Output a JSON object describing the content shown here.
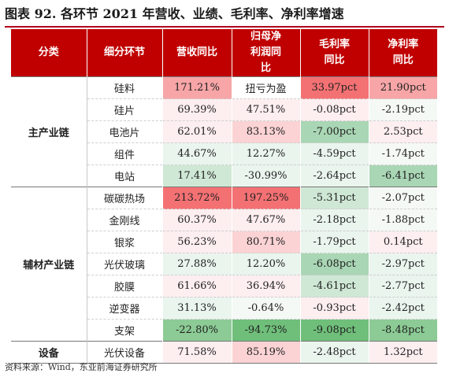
{
  "title": "图表 92. 各环节 2021 年营收、业绩、毛利率、净利率增速",
  "headers": {
    "group": "分类",
    "segment": "细分环节",
    "revenue": "营收同比",
    "profit": "归母净利润同比",
    "gross_margin": "毛利率同比",
    "net_margin": "净利率同比"
  },
  "colors": {
    "header_bg": "#c00000",
    "strong_red": "#f47173",
    "mid_red": "#f7a5a7",
    "light_red": "#fbd3d4",
    "faint_red": "#fdeef0",
    "faint_green": "#eaf5ee",
    "light_green": "#cfe8d5",
    "mid_green": "#a9d6b4",
    "strong_green": "#6fbf7a"
  },
  "groups": [
    {
      "name": "主产业链",
      "rows": [
        {
          "segment": "硅料",
          "revenue": "171.21%",
          "profit": "扭亏为盈",
          "gross_margin": "33.97pct",
          "net_margin": "21.90pct",
          "c": [
            "#f7a5a7",
            "#ffffff",
            "#f47173",
            "#f7a5a7"
          ]
        },
        {
          "segment": "硅片",
          "revenue": "69.39%",
          "profit": "47.51%",
          "gross_margin": "-0.08pct",
          "net_margin": "-2.19pct",
          "c": [
            "#fdeef0",
            "#fdeef0",
            "#fdeef0",
            "#f5f9f6"
          ]
        },
        {
          "segment": "电池片",
          "revenue": "62.01%",
          "profit": "83.13%",
          "gross_margin": "-7.00pct",
          "net_margin": "2.53pct",
          "c": [
            "#fdeef0",
            "#fbd3d4",
            "#a9d6b4",
            "#fdeef0"
          ]
        },
        {
          "segment": "组件",
          "revenue": "44.67%",
          "profit": "12.27%",
          "gross_margin": "-4.59pct",
          "net_margin": "-1.74pct",
          "c": [
            "#eaf5ee",
            "#eaf5ee",
            "#eaf5ee",
            "#f5f9f6"
          ]
        },
        {
          "segment": "电站",
          "revenue": "17.41%",
          "profit": "-30.99%",
          "gross_margin": "-2.64pct",
          "net_margin": "-6.41pct",
          "c": [
            "#cfe8d5",
            "#eaf5ee",
            "#eaf5ee",
            "#a9d6b4"
          ]
        }
      ]
    },
    {
      "name": "辅材产业链",
      "rows": [
        {
          "segment": "碳碳热场",
          "revenue": "213.72%",
          "profit": "197.25%",
          "gross_margin": "-5.31pct",
          "net_margin": "-2.07pct",
          "c": [
            "#f47173",
            "#f47173",
            "#cfe8d5",
            "#f5f9f6"
          ]
        },
        {
          "segment": "金刚线",
          "revenue": "60.37%",
          "profit": "47.67%",
          "gross_margin": "-2.18pct",
          "net_margin": "-1.88pct",
          "c": [
            "#fdeef0",
            "#fdeef0",
            "#eaf5ee",
            "#f5f9f6"
          ]
        },
        {
          "segment": "银浆",
          "revenue": "56.23%",
          "profit": "80.71%",
          "gross_margin": "-1.79pct",
          "net_margin": "0.14pct",
          "c": [
            "#fdeef0",
            "#fbd3d4",
            "#eaf5ee",
            "#fdeef0"
          ]
        },
        {
          "segment": "光伏玻璃",
          "revenue": "27.88%",
          "profit": "12.20%",
          "gross_margin": "-6.08pct",
          "net_margin": "-2.97pct",
          "c": [
            "#eaf5ee",
            "#eaf5ee",
            "#a9d6b4",
            "#eaf5ee"
          ]
        },
        {
          "segment": "胶膜",
          "revenue": "61.66%",
          "profit": "36.94%",
          "gross_margin": "-4.61pct",
          "net_margin": "-2.77pct",
          "c": [
            "#fdeef0",
            "#fdeef0",
            "#cfe8d5",
            "#eaf5ee"
          ]
        },
        {
          "segment": "逆变器",
          "revenue": "31.13%",
          "profit": "-0.64%",
          "gross_margin": "-0.93pct",
          "net_margin": "-2.42pct",
          "c": [
            "#eaf5ee",
            "#f5f9f6",
            "#fdeef0",
            "#eaf5ee"
          ]
        },
        {
          "segment": "支架",
          "revenue": "-22.80%",
          "profit": "-94.73%",
          "gross_margin": "-9.08pct",
          "net_margin": "-8.48pct",
          "c": [
            "#8ccb95",
            "#6fbf7a",
            "#6fbf7a",
            "#8ccb95"
          ]
        }
      ]
    },
    {
      "name": "设备",
      "rows": [
        {
          "segment": "光伏设备",
          "revenue": "71.58%",
          "profit": "85.19%",
          "gross_margin": "-2.48pct",
          "net_margin": "1.32pct",
          "c": [
            "#fdeef0",
            "#fbd3d4",
            "#eaf5ee",
            "#fdeef0"
          ]
        }
      ]
    }
  ],
  "footnote": "资料来源：Wind，东亚前海证券研究所"
}
